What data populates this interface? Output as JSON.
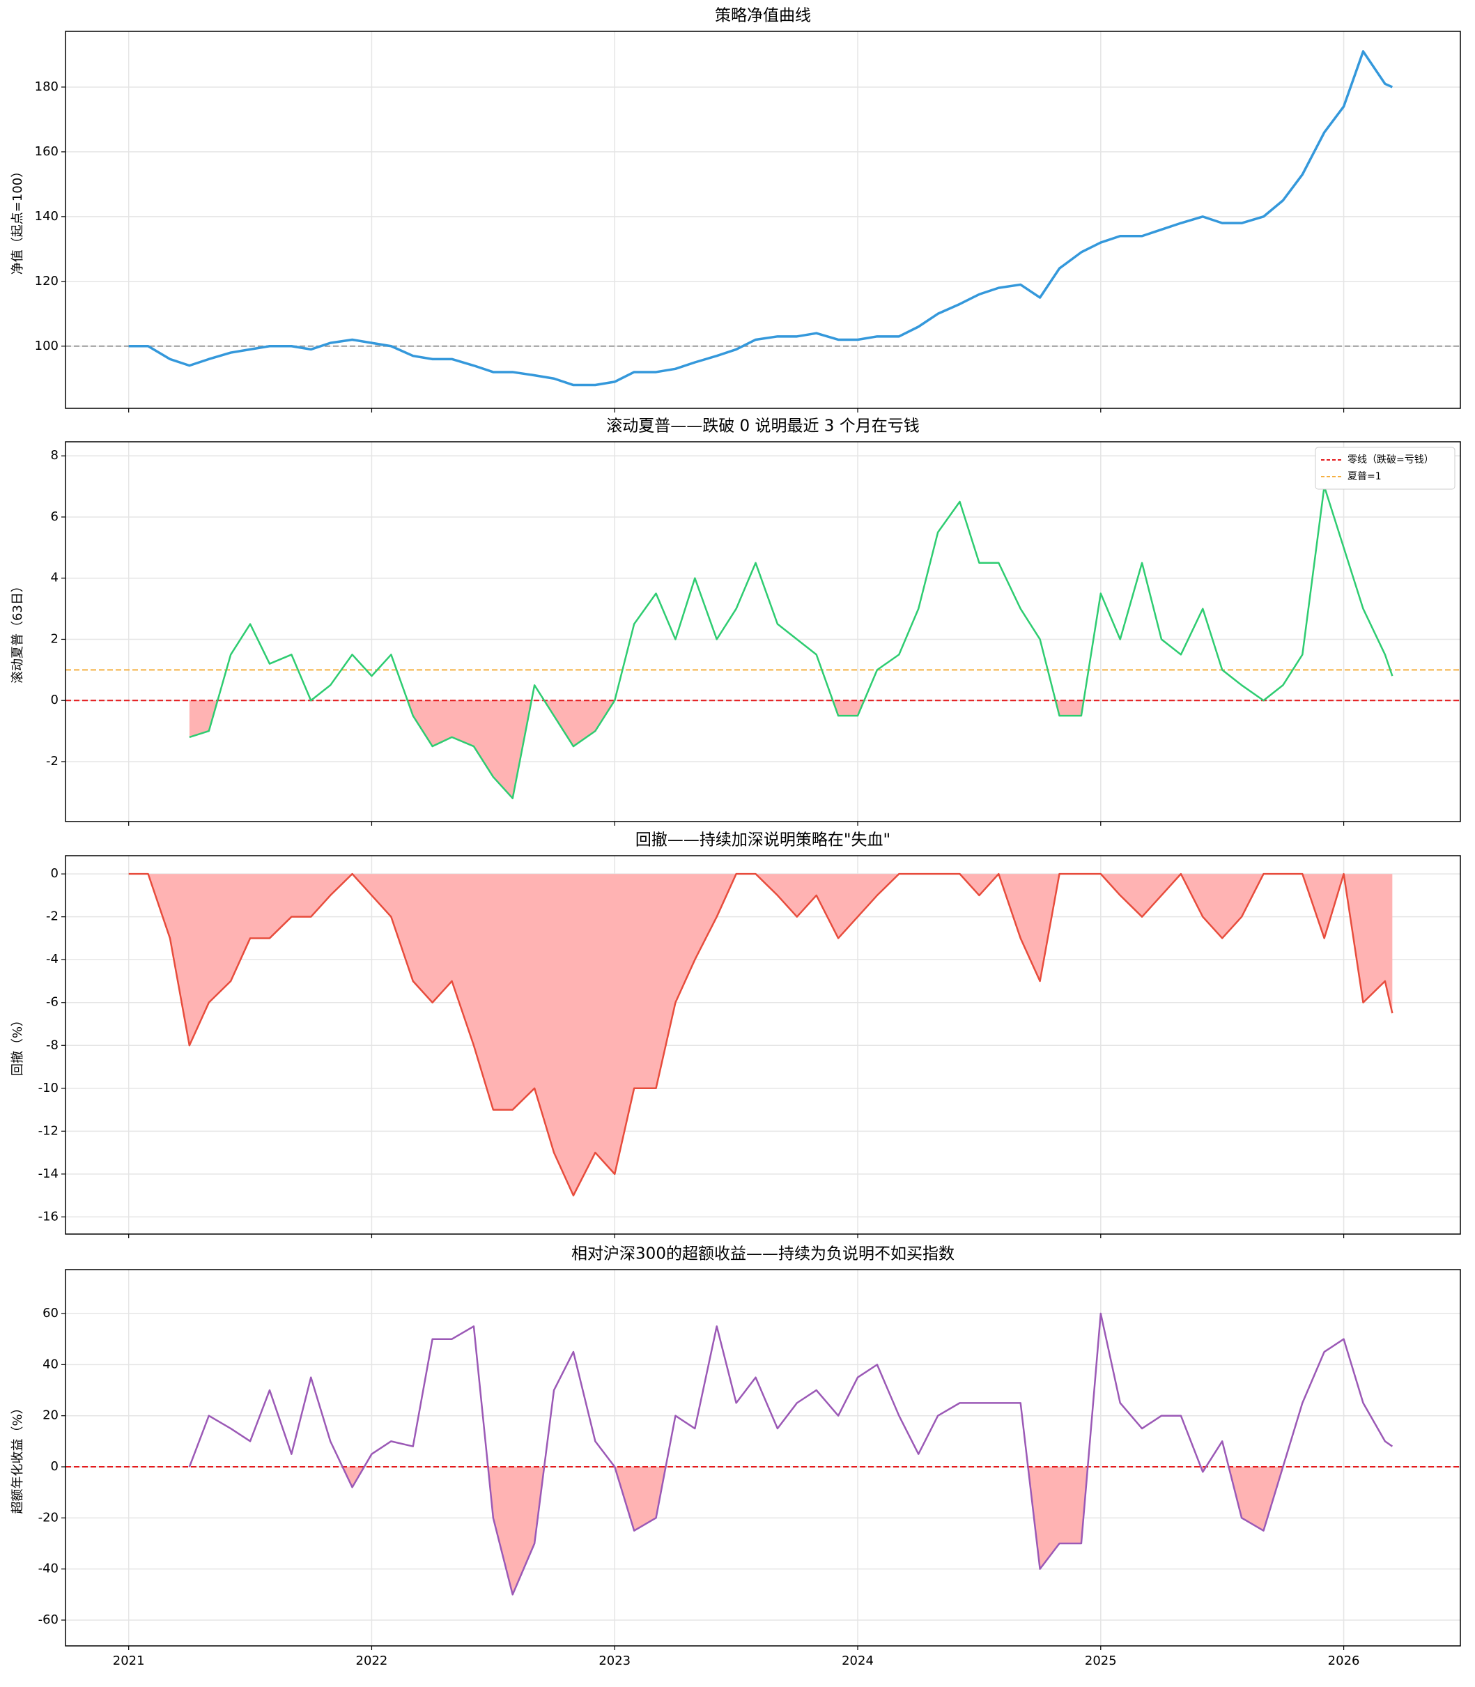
{
  "chart_data": [
    {
      "type": "line",
      "title": "策略净值曲线",
      "ylabel": "净值（起点=100）",
      "x": [
        2021,
        2021.08,
        2021.17,
        2021.25,
        2021.33,
        2021.42,
        2021.5,
        2021.58,
        2021.67,
        2021.75,
        2021.83,
        2021.92,
        2022,
        2022.08,
        2022.17,
        2022.25,
        2022.33,
        2022.42,
        2022.5,
        2022.58,
        2022.67,
        2022.75,
        2022.83,
        2022.92,
        2023,
        2023.08,
        2023.17,
        2023.25,
        2023.33,
        2023.42,
        2023.5,
        2023.58,
        2023.67,
        2023.75,
        2023.83,
        2023.92,
        2024,
        2024.08,
        2024.17,
        2024.25,
        2024.33,
        2024.42,
        2024.5,
        2024.58,
        2024.67,
        2024.75,
        2024.83,
        2024.92,
        2025,
        2025.08,
        2025.17,
        2025.25,
        2025.33,
        2025.42,
        2025.5,
        2025.58,
        2025.67,
        2025.75,
        2025.83,
        2025.92,
        2026,
        2026.08,
        2026.17,
        2026.2
      ],
      "series": [
        {
          "color": "#3498db",
          "values": [
            100,
            100,
            96,
            94,
            96,
            98,
            99,
            100,
            100,
            99,
            101,
            102,
            101,
            100,
            97,
            96,
            96,
            94,
            92,
            92,
            91,
            90,
            88,
            88,
            89,
            92,
            92,
            93,
            95,
            97,
            99,
            102,
            103,
            103,
            104,
            102,
            102,
            103,
            103,
            106,
            110,
            113,
            116,
            118,
            119,
            115,
            124,
            129,
            132,
            134,
            134,
            136,
            138,
            140,
            138,
            138,
            140,
            145,
            153,
            166,
            174,
            191,
            181,
            180
          ]
        }
      ],
      "hlines": [
        {
          "value": 100,
          "color": "#999999"
        }
      ],
      "xlim": [
        2020.74,
        2026.48
      ],
      "ylim": [
        80.8,
        197.2
      ],
      "xticks": [
        2021,
        2022,
        2023,
        2024,
        2025,
        2026
      ],
      "yticks": [
        100,
        120,
        140,
        160,
        180
      ],
      "grid": true
    },
    {
      "type": "line",
      "title": "滚动夏普——跌破 0 说明最近 3 个月在亏钱",
      "ylabel": "滚动夏普（63日）",
      "x": [
        2021.25,
        2021.33,
        2021.42,
        2021.5,
        2021.58,
        2021.67,
        2021.75,
        2021.83,
        2021.92,
        2022,
        2022.08,
        2022.17,
        2022.25,
        2022.33,
        2022.42,
        2022.5,
        2022.58,
        2022.67,
        2022.75,
        2022.83,
        2022.92,
        2023,
        2023.08,
        2023.17,
        2023.25,
        2023.33,
        2023.42,
        2023.5,
        2023.58,
        2023.67,
        2023.75,
        2023.83,
        2023.92,
        2024,
        2024.08,
        2024.17,
        2024.25,
        2024.33,
        2024.42,
        2024.5,
        2024.58,
        2024.67,
        2024.75,
        2024.83,
        2024.92,
        2025,
        2025.08,
        2025.17,
        2025.25,
        2025.33,
        2025.42,
        2025.5,
        2025.58,
        2025.67,
        2025.75,
        2025.83,
        2025.92,
        2026,
        2026.08,
        2026.17,
        2026.2
      ],
      "series": [
        {
          "color": "#2ecc71",
          "values": [
            -1.2,
            -1.0,
            1.5,
            2.5,
            1.2,
            1.5,
            0,
            0.5,
            1.5,
            0.8,
            1.5,
            -0.5,
            -1.5,
            -1.2,
            -1.5,
            -2.5,
            -3.2,
            0.5,
            -0.5,
            -1.5,
            -1.0,
            0,
            2.5,
            3.5,
            2.0,
            4.0,
            2.0,
            3.0,
            4.5,
            2.5,
            2.0,
            1.5,
            -0.5,
            -0.5,
            1.0,
            1.5,
            3.0,
            5.5,
            6.5,
            4.5,
            4.5,
            3.0,
            2.0,
            -0.5,
            -0.5,
            3.5,
            2.0,
            4.5,
            2.0,
            1.5,
            3.0,
            1.0,
            0.5,
            0,
            0.5,
            1.5,
            7.0,
            5.0,
            3.0,
            1.5,
            0.8
          ]
        }
      ],
      "hlines": [
        {
          "value": 0,
          "color": "#e41a1c",
          "label": "零线（跌破=亏钱）"
        },
        {
          "value": 1,
          "color": "#f5b041",
          "label": "夏普=1"
        }
      ],
      "fill_below": 0,
      "fill_color": "#ffb3b3",
      "legend": "upper right",
      "xlim": [
        2020.74,
        2026.48
      ],
      "ylim": [
        -3.96,
        8.46
      ],
      "xticks": [
        2021,
        2022,
        2023,
        2024,
        2025,
        2026
      ],
      "yticks": [
        -2,
        0,
        2,
        4,
        6,
        8
      ],
      "grid": true
    },
    {
      "type": "line",
      "title": "回撤——持续加深说明策略在\"失血\"",
      "ylabel": "回撤（%）",
      "x": [
        2021,
        2021.08,
        2021.17,
        2021.25,
        2021.33,
        2021.42,
        2021.5,
        2021.58,
        2021.67,
        2021.75,
        2021.83,
        2021.92,
        2022,
        2022.08,
        2022.17,
        2022.25,
        2022.33,
        2022.42,
        2022.5,
        2022.58,
        2022.67,
        2022.75,
        2022.83,
        2022.92,
        2023,
        2023.08,
        2023.17,
        2023.25,
        2023.33,
        2023.42,
        2023.5,
        2023.58,
        2023.67,
        2023.75,
        2023.83,
        2023.92,
        2024,
        2024.08,
        2024.17,
        2024.25,
        2024.33,
        2024.42,
        2024.5,
        2024.58,
        2024.67,
        2024.75,
        2024.83,
        2024.92,
        2025,
        2025.08,
        2025.17,
        2025.25,
        2025.33,
        2025.42,
        2025.5,
        2025.58,
        2025.67,
        2025.75,
        2025.83,
        2025.92,
        2026,
        2026.08,
        2026.17,
        2026.2
      ],
      "series": [
        {
          "color": "#e74c3c",
          "values": [
            0,
            0,
            -3,
            -8,
            -6,
            -5,
            -3,
            -3,
            -2,
            -2,
            -1,
            0,
            -1,
            -2,
            -5,
            -6,
            -5,
            -8,
            -11,
            -11,
            -10,
            -13,
            -15,
            -13,
            -14,
            -10,
            -10,
            -6,
            -4,
            -2,
            0,
            0,
            -1,
            -2,
            -1,
            -3,
            -2,
            -1,
            0,
            0,
            0,
            0,
            -1,
            0,
            -3,
            -5,
            0,
            0,
            0,
            -1,
            -2,
            -1,
            0,
            -2,
            -3,
            -2,
            0,
            0,
            0,
            -3,
            0,
            -6,
            -5,
            -6.5
          ]
        }
      ],
      "fill_below": 0,
      "fill_color": "#ffb3b3",
      "xlim": [
        2020.74,
        2026.48
      ],
      "ylim": [
        -16.8,
        0.85
      ],
      "xticks": [
        2021,
        2022,
        2023,
        2024,
        2025,
        2026
      ],
      "yticks": [
        -16,
        -14,
        -12,
        -10,
        -8,
        -6,
        -4,
        -2,
        0
      ],
      "grid": true
    },
    {
      "type": "line",
      "title": "相对沪深300的超额收益——持续为负说明不如买指数",
      "ylabel": "超额年化收益（%）",
      "x": [
        2021.25,
        2021.33,
        2021.42,
        2021.5,
        2021.58,
        2021.67,
        2021.75,
        2021.83,
        2021.92,
        2022,
        2022.08,
        2022.17,
        2022.25,
        2022.33,
        2022.42,
        2022.5,
        2022.58,
        2022.67,
        2022.75,
        2022.83,
        2022.92,
        2023,
        2023.08,
        2023.17,
        2023.25,
        2023.33,
        2023.42,
        2023.5,
        2023.58,
        2023.67,
        2023.75,
        2023.83,
        2023.92,
        2024,
        2024.08,
        2024.17,
        2024.25,
        2024.33,
        2024.42,
        2024.5,
        2024.58,
        2024.67,
        2024.75,
        2024.83,
        2024.92,
        2025,
        2025.08,
        2025.17,
        2025.25,
        2025.33,
        2025.42,
        2025.5,
        2025.58,
        2025.67,
        2025.75,
        2025.83,
        2025.92,
        2026,
        2026.08,
        2026.17,
        2026.2
      ],
      "series": [
        {
          "color": "#9b59b6",
          "values": [
            0,
            20,
            15,
            10,
            30,
            5,
            35,
            10,
            -8,
            5,
            10,
            8,
            50,
            50,
            55,
            -20,
            -50,
            -30,
            30,
            45,
            10,
            0,
            -25,
            -20,
            20,
            15,
            55,
            25,
            35,
            15,
            25,
            30,
            20,
            35,
            40,
            20,
            5,
            20,
            25,
            25,
            25,
            25,
            -40,
            -30,
            -30,
            60,
            25,
            15,
            20,
            20,
            -2,
            10,
            -20,
            -25,
            0,
            25,
            45,
            50,
            25,
            10,
            8
          ]
        }
      ],
      "hlines": [
        {
          "value": 0,
          "color": "#e41a1c"
        }
      ],
      "fill_below": 0,
      "fill_color": "#ffb3b3",
      "xlim": [
        2020.74,
        2026.48
      ],
      "ylim": [
        -70.1,
        77.2
      ],
      "xticks": [
        2021,
        2022,
        2023,
        2024,
        2025,
        2026
      ],
      "yticks": [
        -60,
        -40,
        -20,
        0,
        20,
        40,
        60
      ],
      "grid": true
    }
  ]
}
